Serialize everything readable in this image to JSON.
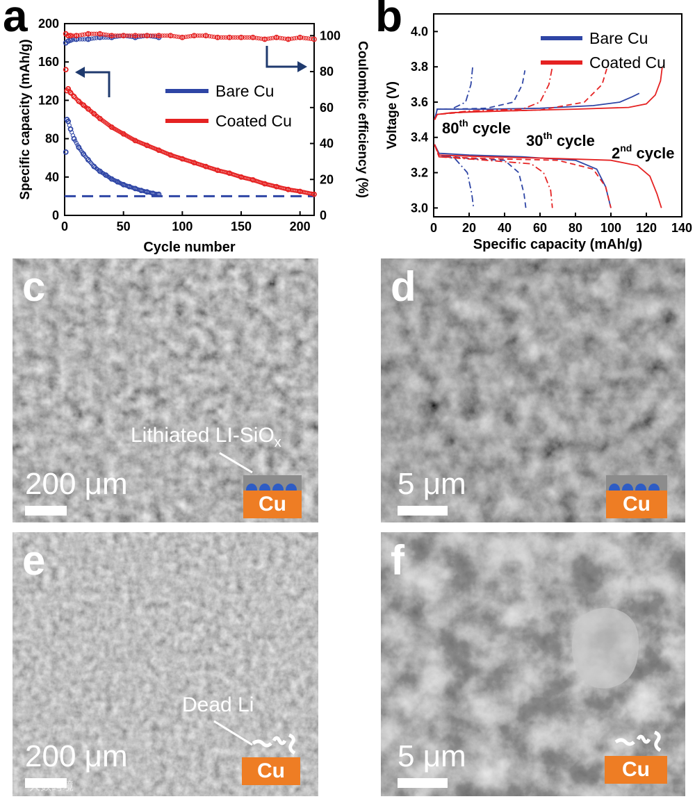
{
  "panels": {
    "a": {
      "letter": "a"
    },
    "b": {
      "letter": "b"
    },
    "c": {
      "letter": "c",
      "scale": "200 μm",
      "annotation": "Lithiated LI-SiO",
      "annotation_sub": "x",
      "cu": "Cu"
    },
    "d": {
      "letter": "d",
      "scale": "5 μm",
      "cu": "Cu"
    },
    "e": {
      "letter": "e",
      "scale": "200 μm",
      "annotation": "Dead Li",
      "cu": "Cu"
    },
    "f": {
      "letter": "f",
      "scale": "5 μm",
      "cu": "Cu"
    }
  },
  "watermark": "大数跨境",
  "colors": {
    "bare": "#2e45a5",
    "coated": "#e52222",
    "cu": "#ee7d24"
  },
  "chart_data": [
    {
      "type": "scatter",
      "xlabel": "Cycle number",
      "ylabel": "Specific capacity (mAh/g)",
      "y2label": "Coulombic efficiency (%)",
      "xlim": [
        0,
        212
      ],
      "ylim": [
        0,
        200
      ],
      "y2lim": [
        0,
        106.7
      ],
      "xticks": [
        0,
        50,
        100,
        150,
        200
      ],
      "yticks": [
        0,
        40,
        80,
        120,
        160,
        200
      ],
      "y2ticks": [
        0,
        20,
        40,
        60,
        80,
        100
      ],
      "reference_line": 20,
      "legend": [
        "Bare Cu",
        "Coated Cu"
      ],
      "legend_position": "center-right",
      "series": [
        {
          "name": "Bare Cu",
          "axis": "capacity",
          "x": [
            1,
            2,
            3,
            5,
            8,
            12,
            16,
            20,
            25,
            30,
            35,
            40,
            45,
            50,
            55,
            60,
            65,
            70,
            75,
            80
          ],
          "values": [
            66,
            100,
            98,
            90,
            80,
            71,
            64,
            58,
            51,
            46,
            42,
            38,
            35,
            32,
            30,
            28,
            26,
            24.5,
            23,
            22
          ]
        },
        {
          "name": "Coated Cu",
          "axis": "capacity",
          "x": [
            1,
            2,
            3,
            5,
            8,
            12,
            16,
            20,
            25,
            30,
            40,
            50,
            60,
            70,
            80,
            90,
            100,
            110,
            120,
            130,
            140,
            150,
            160,
            170,
            180,
            190,
            200,
            212
          ],
          "values": [
            152,
            130,
            132,
            128,
            124,
            119,
            115,
            111,
            106,
            101,
            92,
            85,
            78,
            73,
            68,
            63,
            59,
            55,
            51,
            47,
            44,
            40,
            37,
            33,
            30,
            27,
            25,
            22
          ]
        },
        {
          "name": "Bare Cu",
          "axis": "efficiency",
          "x": [
            1,
            3,
            5,
            10,
            20,
            30,
            40,
            50,
            60,
            70,
            80
          ],
          "values": [
            96,
            97,
            97.5,
            98,
            98,
            99,
            99,
            100,
            99,
            100,
            99
          ]
        },
        {
          "name": "Coated Cu",
          "axis": "efficiency",
          "x": [
            1,
            3,
            5,
            10,
            20,
            30,
            40,
            50,
            60,
            70,
            80,
            90,
            100,
            110,
            120,
            130,
            140,
            150,
            160,
            170,
            180,
            190,
            200,
            212
          ],
          "values": [
            101,
            100,
            100,
            100,
            101,
            101,
            100,
            100,
            100,
            100,
            100,
            100,
            99,
            100,
            100,
            99,
            99,
            99,
            99,
            98,
            99,
            98,
            99,
            98
          ]
        }
      ]
    },
    {
      "type": "line",
      "xlabel": "Specific capacity (mAh/g)",
      "ylabel": "Voltage (V)",
      "xlim": [
        0,
        140
      ],
      "ylim": [
        2.95,
        4.1
      ],
      "xticks": [
        0,
        20,
        40,
        60,
        80,
        100,
        120,
        140
      ],
      "yticks": [
        3.0,
        3.2,
        3.4,
        3.6,
        3.8,
        4.0
      ],
      "legend": [
        "Bare Cu",
        "Coated Cu"
      ],
      "legend_position": "top-right",
      "annotations": [
        {
          "base": "80",
          "sup": "th",
          "tail": " cycle"
        },
        {
          "base": "30",
          "sup": "th",
          "tail": " cycle"
        },
        {
          "base": "2",
          "sup": "nd",
          "tail": " cycle"
        }
      ],
      "series": [
        {
          "name": "Bare Cu",
          "cycle": "2nd",
          "x": [
            0.5,
            2,
            10,
            30,
            60,
            90,
            105,
            112,
            116
          ],
          "values": [
            3.5,
            3.56,
            3.56,
            3.56,
            3.565,
            3.58,
            3.6,
            3.63,
            3.65
          ],
          "discharge_x": [
            0.5,
            3,
            20,
            50,
            80,
            92,
            97,
            100
          ],
          "discharge_values": [
            3.36,
            3.31,
            3.3,
            3.29,
            3.27,
            3.22,
            3.12,
            3.0
          ]
        },
        {
          "name": "Bare Cu",
          "cycle": "30th",
          "x": [
            0.5,
            2,
            10,
            30,
            45,
            50,
            51.5
          ],
          "values": [
            3.5,
            3.56,
            3.56,
            3.565,
            3.6,
            3.7,
            3.78
          ],
          "discharge_x": [
            0.5,
            3,
            20,
            40,
            48,
            51,
            52
          ],
          "discharge_values": [
            3.36,
            3.3,
            3.28,
            3.27,
            3.2,
            3.08,
            3.0
          ]
        },
        {
          "name": "Bare Cu",
          "cycle": "80th",
          "x": [
            0.5,
            2,
            10,
            18,
            21,
            22
          ],
          "values": [
            3.5,
            3.56,
            3.56,
            3.6,
            3.7,
            3.8
          ],
          "discharge_x": [
            0.5,
            3,
            12,
            19,
            21.5,
            22.5
          ],
          "discharge_values": [
            3.36,
            3.3,
            3.28,
            3.2,
            3.08,
            3.0
          ]
        },
        {
          "name": "Coated Cu",
          "cycle": "2nd",
          "x": [
            0.5,
            2,
            10,
            40,
            80,
            110,
            120,
            125,
            128,
            129
          ],
          "values": [
            3.5,
            3.53,
            3.54,
            3.55,
            3.56,
            3.57,
            3.59,
            3.64,
            3.72,
            3.8
          ],
          "discharge_x": [
            0.5,
            3,
            30,
            70,
            100,
            115,
            122,
            126,
            128.5
          ],
          "discharge_values": [
            3.36,
            3.3,
            3.29,
            3.28,
            3.27,
            3.24,
            3.18,
            3.08,
            3.0
          ]
        },
        {
          "name": "Coated Cu",
          "cycle": "30th",
          "x": [
            0.5,
            2,
            20,
            60,
            85,
            95,
            98
          ],
          "values": [
            3.5,
            3.53,
            3.545,
            3.555,
            3.6,
            3.7,
            3.8
          ],
          "discharge_x": [
            0.5,
            3,
            30,
            70,
            90,
            97,
            100
          ],
          "discharge_values": [
            3.36,
            3.29,
            3.28,
            3.27,
            3.22,
            3.12,
            3.0
          ]
        },
        {
          "name": "Coated Cu",
          "cycle": "80th",
          "x": [
            0.5,
            2,
            20,
            50,
            60,
            65,
            67
          ],
          "values": [
            3.5,
            3.53,
            3.55,
            3.56,
            3.6,
            3.7,
            3.8
          ],
          "discharge_x": [
            0.5,
            3,
            30,
            55,
            62,
            66,
            67
          ],
          "discharge_values": [
            3.36,
            3.29,
            3.27,
            3.25,
            3.2,
            3.1,
            3.0
          ]
        }
      ]
    }
  ]
}
